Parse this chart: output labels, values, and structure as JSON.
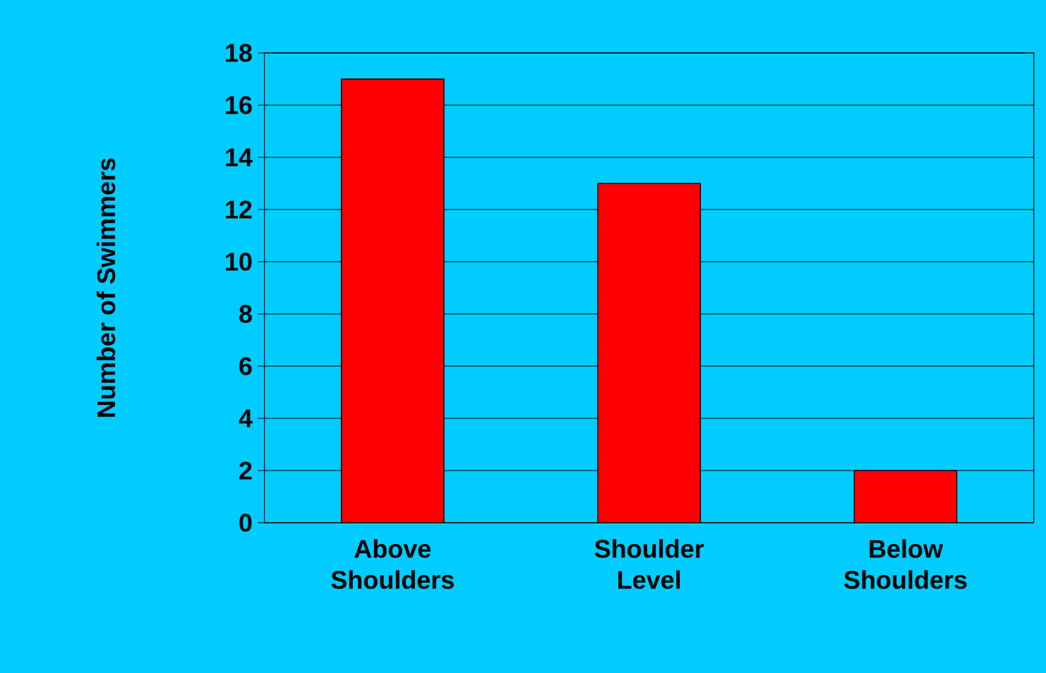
{
  "chart_data": {
    "type": "bar",
    "ylabel": "Number of Swimmers",
    "categories": [
      "Above Shoulders",
      "Shoulder Level",
      "Below Shoulders"
    ],
    "values": [
      17,
      13,
      2
    ],
    "color": "#ff0000",
    "ylim": [
      0,
      18
    ],
    "yticks": [
      0,
      2,
      4,
      6,
      8,
      10,
      12,
      14,
      16,
      18
    ],
    "grid": "y"
  }
}
